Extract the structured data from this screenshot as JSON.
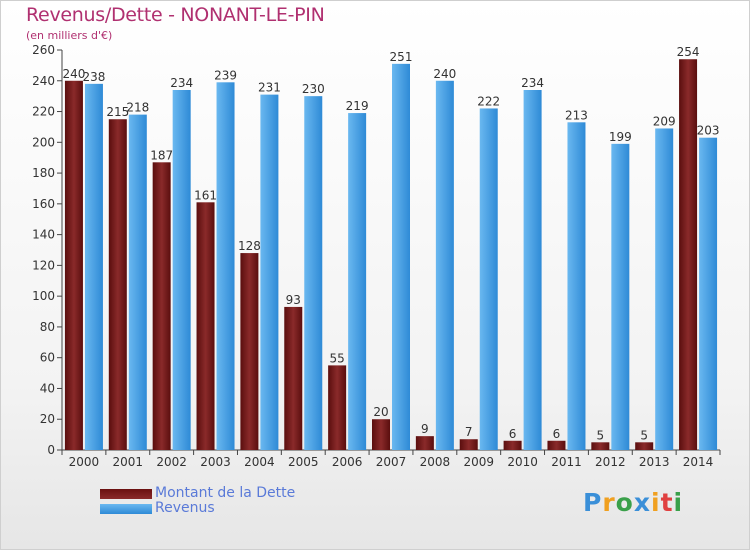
{
  "header": {
    "title": "Revenus/Dette - NONANT-LE-PIN",
    "subtitle": "(en milliers d'€)"
  },
  "chart_data": {
    "type": "bar",
    "title": "Revenus/Dette - NONANT-LE-PIN",
    "subtitle": "(en milliers d'€)",
    "categories": [
      "2000",
      "2001",
      "2002",
      "2003",
      "2004",
      "2005",
      "2006",
      "2007",
      "2008",
      "2009",
      "2010",
      "2011",
      "2012",
      "2013",
      "2014"
    ],
    "series": [
      {
        "name": "Montant de la Dette",
        "color": "#7a1a1a",
        "values": [
          240,
          215,
          187,
          161,
          128,
          93,
          55,
          20,
          9,
          7,
          6,
          6,
          5,
          5,
          254
        ]
      },
      {
        "name": "Revenus",
        "color": "#3a9ee6",
        "values": [
          238,
          218,
          234,
          239,
          231,
          230,
          219,
          251,
          240,
          222,
          234,
          213,
          199,
          209,
          203
        ]
      }
    ],
    "ylim": [
      0,
      260
    ],
    "yticks": [
      0,
      20,
      40,
      60,
      80,
      100,
      120,
      140,
      160,
      180,
      200,
      220,
      240,
      260
    ],
    "grid": false,
    "legend_position": "bottom-left"
  },
  "legend": {
    "dette_label": "Montant de la Dette",
    "revenus_label": "Revenus"
  },
  "logo": {
    "letters": [
      "P",
      "r",
      "o",
      "x",
      "i",
      "t",
      "i"
    ],
    "colors": [
      "#3a8fd8",
      "#f0a020",
      "#3aa04a",
      "#3a8fd8",
      "#f0a020",
      "#e04040",
      "#3aa04a"
    ]
  }
}
